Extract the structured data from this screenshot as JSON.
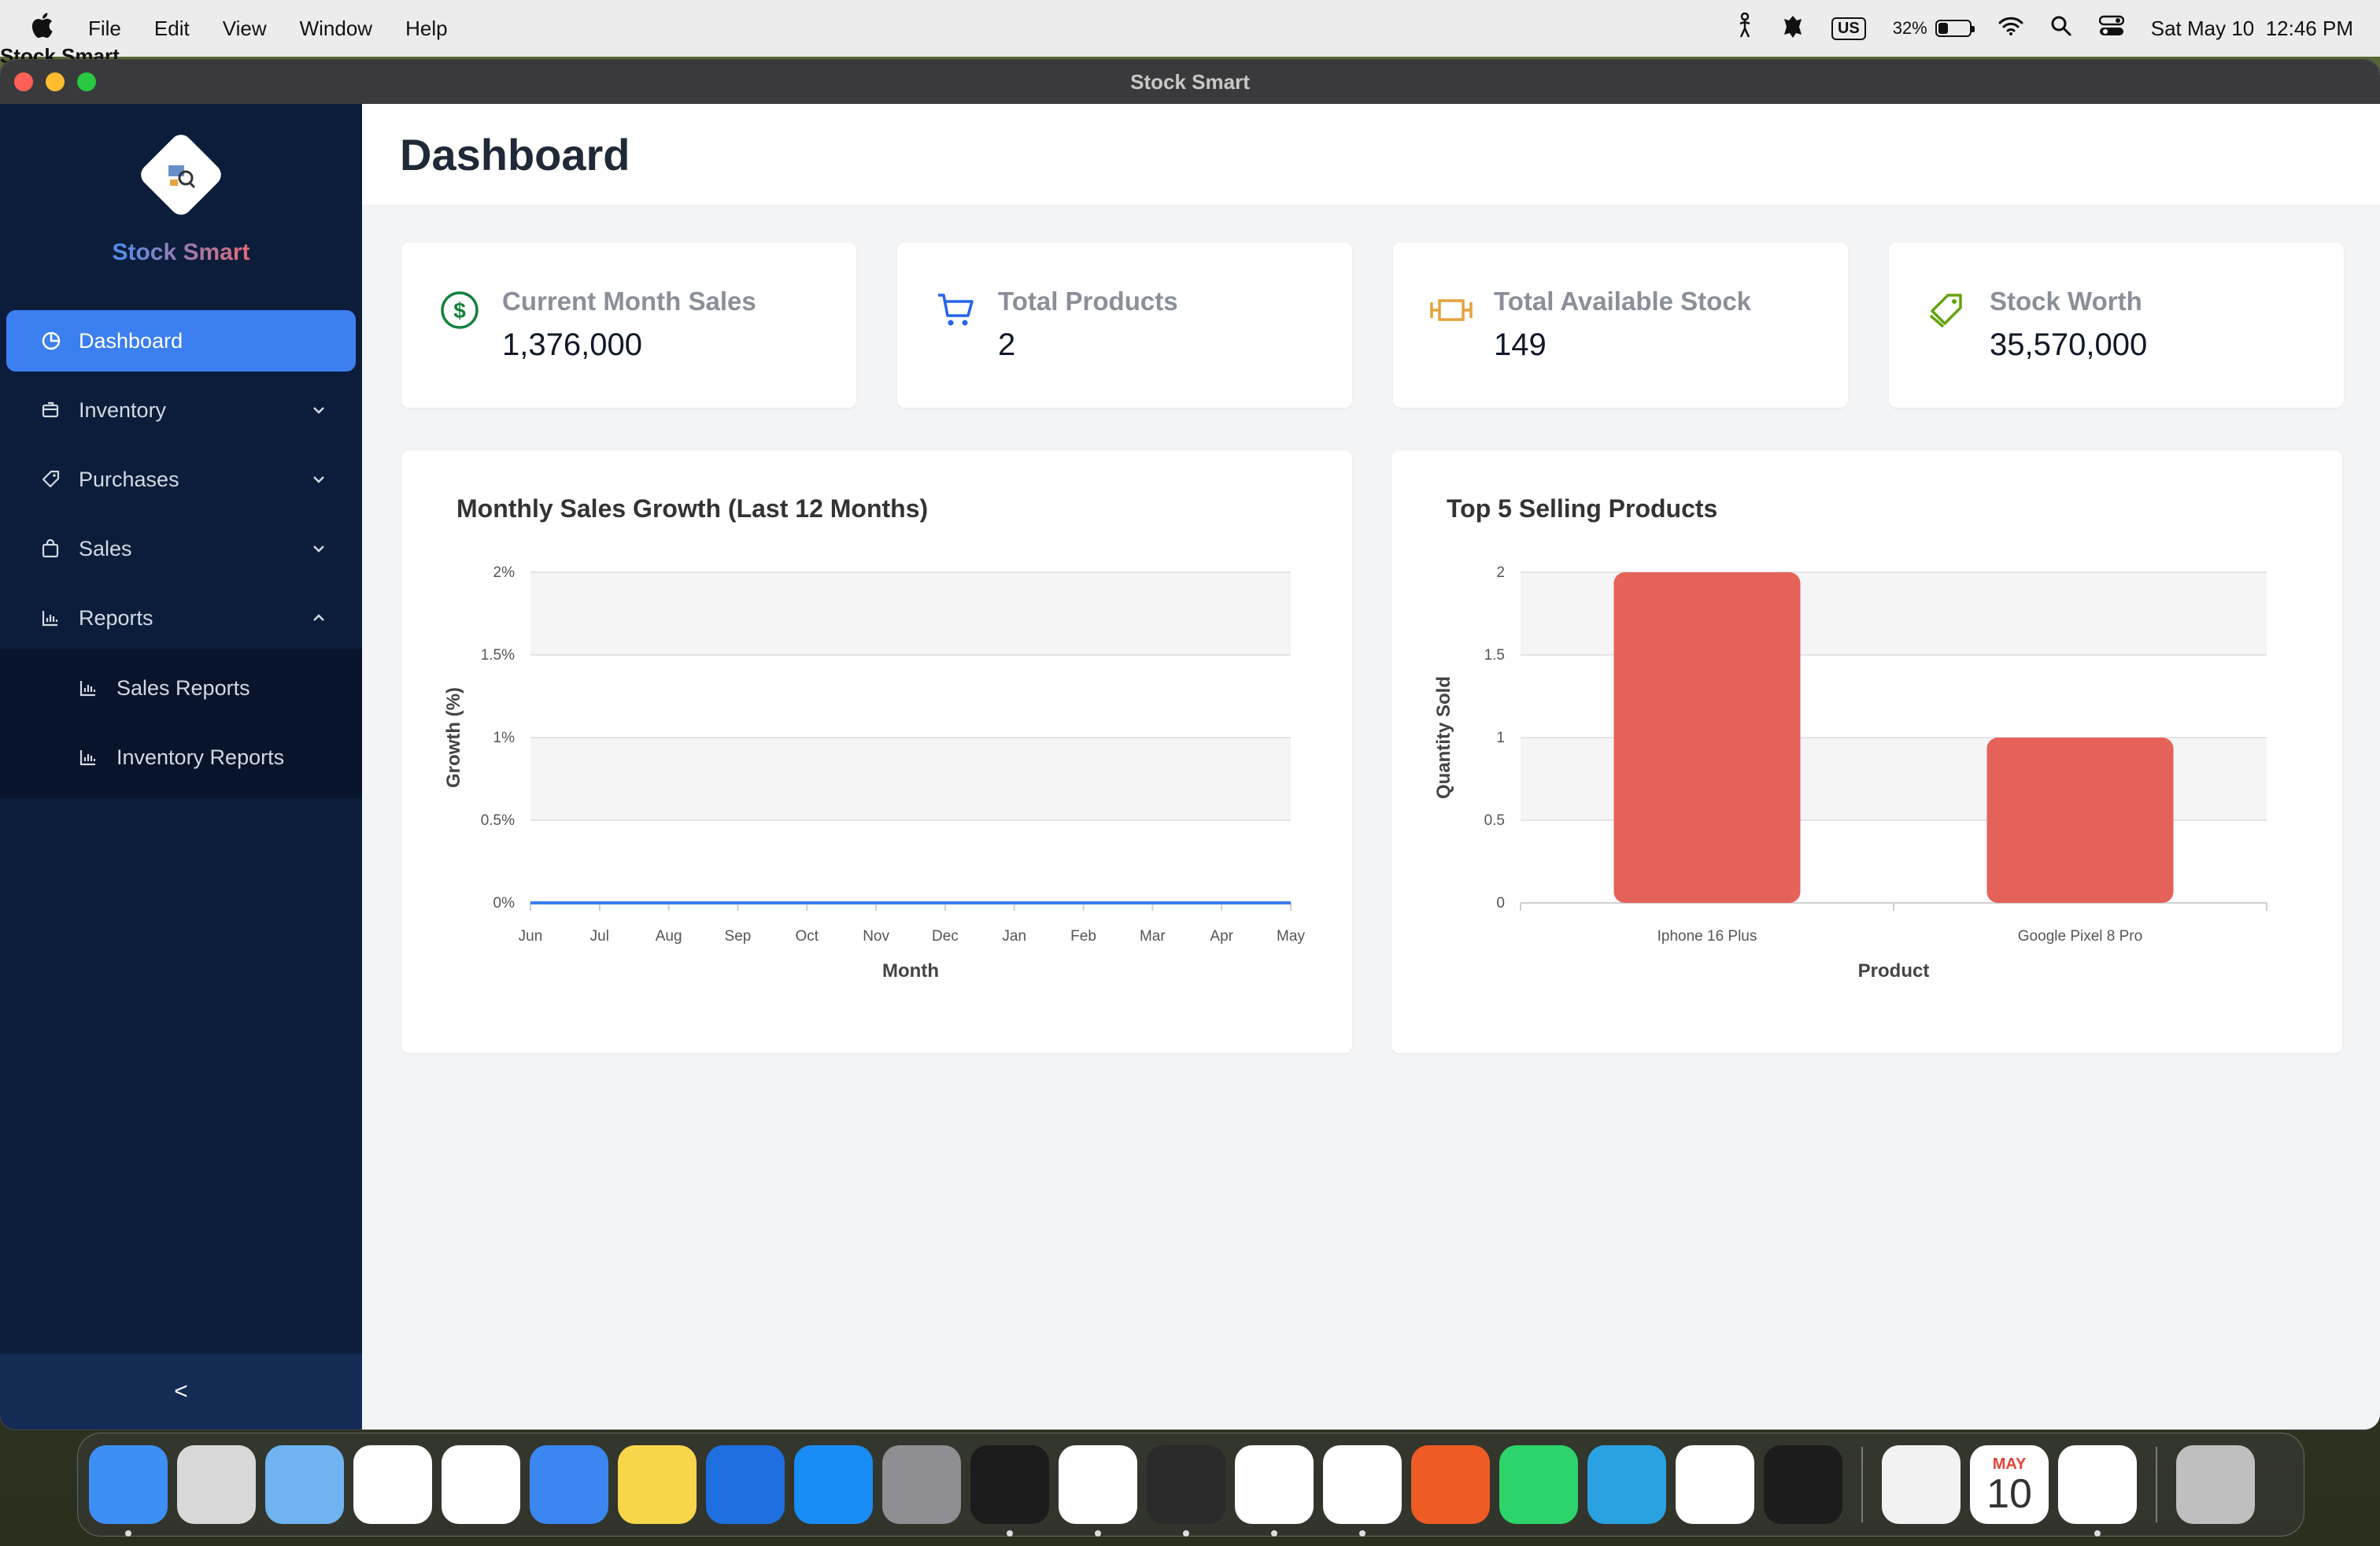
{
  "menubar": {
    "app_name": "Stock Smart",
    "menus": [
      "File",
      "Edit",
      "View",
      "Window",
      "Help"
    ],
    "keyboard_layout": "US",
    "battery_percent": "32%",
    "battery_level": 0.32,
    "datetime": "Sat May 10  12:46 PM"
  },
  "window": {
    "title": "Stock Smart"
  },
  "sidebar": {
    "brand": "Stock Smart",
    "items": [
      {
        "label": "Dashboard",
        "icon": "pie-chart-icon",
        "active": true
      },
      {
        "label": "Inventory",
        "icon": "box-icon",
        "expandable": true
      },
      {
        "label": "Purchases",
        "icon": "tag-icon",
        "expandable": true
      },
      {
        "label": "Sales",
        "icon": "shopping-bag-icon",
        "expandable": true
      },
      {
        "label": "Reports",
        "icon": "bar-chart-icon",
        "expanded": true
      }
    ],
    "submenu": [
      {
        "label": "Sales Reports",
        "icon": "bar-chart-icon"
      },
      {
        "label": "Inventory Reports",
        "icon": "bar-chart-icon"
      }
    ],
    "collapse_symbol": "<"
  },
  "page": {
    "title": "Dashboard"
  },
  "stats": [
    {
      "label": "Current Month Sales",
      "value": "1,376,000",
      "icon": "dollar-circle-icon",
      "color": "#15803d"
    },
    {
      "label": "Total Products",
      "value": "2",
      "icon": "cart-icon",
      "color": "#2563eb"
    },
    {
      "label": "Total Available Stock",
      "value": "149",
      "icon": "stock-icon",
      "color": "#e6a23c"
    },
    {
      "label": "Stock Worth",
      "value": "35,570,000",
      "icon": "tags-icon",
      "color": "#65a30d"
    }
  ],
  "chart_data": [
    {
      "type": "line",
      "title": "Monthly Sales Growth (Last 12 Months)",
      "xlabel": "Month",
      "ylabel": "Growth (%)",
      "categories": [
        "Jun",
        "Jul",
        "Aug",
        "Sep",
        "Oct",
        "Nov",
        "Dec",
        "Jan",
        "Feb",
        "Mar",
        "Apr",
        "May"
      ],
      "series": [
        {
          "values": [
            0,
            0,
            0,
            0,
            0,
            0,
            0,
            0,
            0,
            0,
            0,
            0
          ],
          "color": "#3b7ff0"
        }
      ],
      "yticks": [
        "0%",
        "0.5%",
        "1%",
        "1.5%",
        "2%"
      ],
      "ylim": [
        0,
        2
      ],
      "grid": true
    },
    {
      "type": "bar",
      "title": "Top 5 Selling Products",
      "xlabel": "Product",
      "ylabel": "Quantity Sold",
      "categories": [
        "Iphone 16 Plus",
        "Google Pixel 8 Pro"
      ],
      "values": [
        2,
        1
      ],
      "yticks": [
        "0",
        "0.5",
        "1",
        "1.5",
        "2"
      ],
      "ylim": [
        0,
        2
      ],
      "bar_color": "#e4625a",
      "grid": true
    }
  ],
  "dock": {
    "apps": [
      {
        "name": "finder",
        "color": "#3d8ff5"
      },
      {
        "name": "launchpad",
        "color": "#d8d8d8"
      },
      {
        "name": "maps",
        "color": "#6fb3f0"
      },
      {
        "name": "photos",
        "color": "#ffffff"
      },
      {
        "name": "reminders",
        "color": "#ffffff"
      },
      {
        "name": "mail",
        "color": "#3b86f0"
      },
      {
        "name": "notes",
        "color": "#f7d64a"
      },
      {
        "name": "xcode",
        "color": "#1f6fe0"
      },
      {
        "name": "app-store",
        "color": "#1a8cf5"
      },
      {
        "name": "system-settings",
        "color": "#8e8e93"
      },
      {
        "name": "terminal",
        "color": "#1b1b1b"
      },
      {
        "name": "vscode",
        "color": "#ffffff"
      },
      {
        "name": "fl-studio",
        "color": "#2a2a2a"
      },
      {
        "name": "chrome",
        "color": "#ffffff"
      },
      {
        "name": "slack",
        "color": "#ffffff"
      },
      {
        "name": "postman",
        "color": "#ef5b25"
      },
      {
        "name": "whatsapp",
        "color": "#2cd46b"
      },
      {
        "name": "telegram",
        "color": "#2aa1e0"
      },
      {
        "name": "mongodb",
        "color": "#ffffff"
      },
      {
        "name": "activity-monitor",
        "color": "#1c1c1c"
      },
      {
        "name": "textedit",
        "color": "#f2f2f2"
      },
      {
        "name": "calendar",
        "color": "#ffffff"
      },
      {
        "name": "stock-smart",
        "color": "#ffffff"
      },
      {
        "name": "trash",
        "color": "#bfbfbf"
      }
    ],
    "calendar_month": "MAY",
    "calendar_day": "10"
  }
}
